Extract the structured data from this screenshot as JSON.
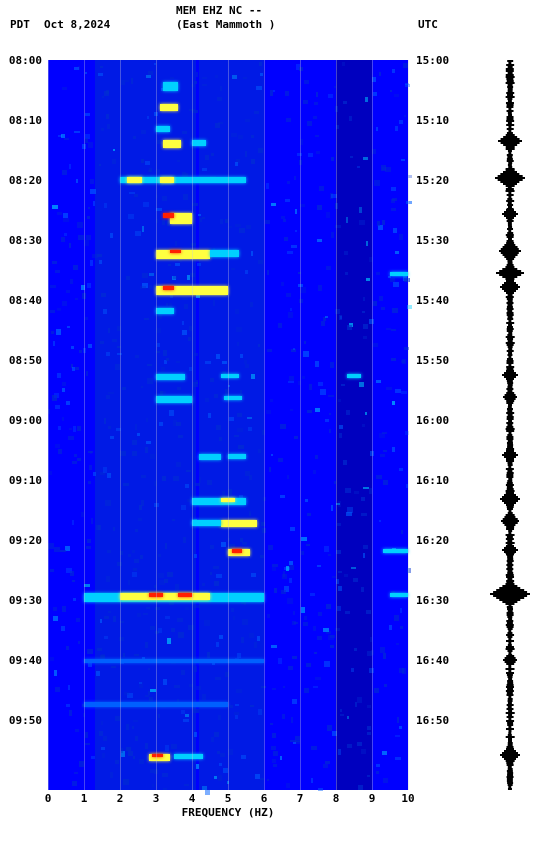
{
  "header": {
    "tz_left": "PDT",
    "date": "Oct 8,2024",
    "station_line1": "MEM EHZ NC --",
    "station_line2": "(East Mammoth )",
    "tz_right": "UTC"
  },
  "axes": {
    "xlabel": "FREQUENCY (HZ)",
    "xmin": 0,
    "xmax": 10,
    "xticks": [
      0,
      1,
      2,
      3,
      4,
      5,
      6,
      7,
      8,
      9,
      10
    ],
    "left_ticks": [
      "08:00",
      "08:10",
      "08:20",
      "08:30",
      "08:40",
      "08:50",
      "09:00",
      "09:10",
      "09:20",
      "09:30",
      "09:40",
      "09:50"
    ],
    "right_ticks": [
      "15:00",
      "15:10",
      "15:20",
      "15:30",
      "15:40",
      "15:50",
      "16:00",
      "16:10",
      "16:20",
      "16:30",
      "16:40",
      "16:50"
    ],
    "left_positions_pct": [
      0,
      8.2,
      16.4,
      24.7,
      32.9,
      41.1,
      49.3,
      57.5,
      65.8,
      74.0,
      82.2,
      90.4
    ],
    "plot_bg": "#0000ff"
  },
  "palette": {
    "low": "#00008b",
    "mid1": "#0030d0",
    "mid2": "#0060ff",
    "cyan": "#00d0ff",
    "yellow": "#ffff40",
    "red": "#ff2000"
  },
  "hotspots": [
    {
      "t": 3,
      "f": 3.2,
      "w": 0.4,
      "h": 1.2,
      "c": "cyan"
    },
    {
      "t": 6,
      "f": 3.1,
      "w": 0.5,
      "h": 1.0,
      "c": "yellow"
    },
    {
      "t": 9,
      "f": 3.0,
      "w": 0.4,
      "h": 0.8,
      "c": "cyan"
    },
    {
      "t": 11,
      "f": 3.2,
      "w": 0.5,
      "h": 1.0,
      "c": "yellow"
    },
    {
      "t": 11,
      "f": 4.0,
      "w": 0.4,
      "h": 0.8,
      "c": "cyan"
    },
    {
      "t": 16,
      "f": 2.0,
      "w": 3.5,
      "h": 0.8,
      "c": "cyan"
    },
    {
      "t": 16,
      "f": 3.1,
      "w": 0.4,
      "h": 0.8,
      "c": "yellow"
    },
    {
      "t": 16,
      "f": 2.2,
      "w": 0.4,
      "h": 0.8,
      "c": "yellow"
    },
    {
      "t": 21,
      "f": 3.4,
      "w": 0.6,
      "h": 1.5,
      "c": "yellow"
    },
    {
      "t": 21,
      "f": 3.2,
      "w": 0.3,
      "h": 0.6,
      "c": "red"
    },
    {
      "t": 26,
      "f": 3.0,
      "w": 1.5,
      "h": 1.2,
      "c": "yellow"
    },
    {
      "t": 26,
      "f": 3.4,
      "w": 0.3,
      "h": 0.5,
      "c": "red"
    },
    {
      "t": 26,
      "f": 4.5,
      "w": 0.8,
      "h": 1.0,
      "c": "cyan"
    },
    {
      "t": 29,
      "f": 9.5,
      "w": 0.5,
      "h": 0.6,
      "c": "cyan"
    },
    {
      "t": 31,
      "f": 3.0,
      "w": 2.0,
      "h": 1.2,
      "c": "yellow"
    },
    {
      "t": 31,
      "f": 3.2,
      "w": 0.3,
      "h": 0.5,
      "c": "red"
    },
    {
      "t": 34,
      "f": 3.0,
      "w": 0.5,
      "h": 0.8,
      "c": "cyan"
    },
    {
      "t": 43,
      "f": 3.0,
      "w": 0.8,
      "h": 0.8,
      "c": "cyan"
    },
    {
      "t": 43,
      "f": 4.8,
      "w": 0.5,
      "h": 0.6,
      "c": "cyan"
    },
    {
      "t": 43,
      "f": 8.3,
      "w": 0.4,
      "h": 0.6,
      "c": "cyan"
    },
    {
      "t": 46,
      "f": 3.0,
      "w": 1.0,
      "h": 1.0,
      "c": "cyan"
    },
    {
      "t": 46,
      "f": 4.9,
      "w": 0.5,
      "h": 0.6,
      "c": "cyan"
    },
    {
      "t": 54,
      "f": 4.2,
      "w": 0.6,
      "h": 0.8,
      "c": "cyan"
    },
    {
      "t": 54,
      "f": 5.0,
      "w": 0.5,
      "h": 0.6,
      "c": "cyan"
    },
    {
      "t": 60,
      "f": 4.0,
      "w": 1.5,
      "h": 1.0,
      "c": "cyan"
    },
    {
      "t": 60,
      "f": 4.8,
      "w": 0.4,
      "h": 0.6,
      "c": "yellow"
    },
    {
      "t": 63,
      "f": 4.8,
      "w": 1.0,
      "h": 1.0,
      "c": "yellow"
    },
    {
      "t": 63,
      "f": 4.0,
      "w": 0.8,
      "h": 0.8,
      "c": "cyan"
    },
    {
      "t": 67,
      "f": 5.0,
      "w": 0.6,
      "h": 1.0,
      "c": "yellow"
    },
    {
      "t": 67,
      "f": 5.1,
      "w": 0.3,
      "h": 0.5,
      "c": "red"
    },
    {
      "t": 67,
      "f": 9.3,
      "w": 0.7,
      "h": 0.6,
      "c": "cyan"
    },
    {
      "t": 73,
      "f": 1.0,
      "w": 5.0,
      "h": 1.2,
      "c": "cyan"
    },
    {
      "t": 73,
      "f": 2.0,
      "w": 2.5,
      "h": 1.0,
      "c": "yellow"
    },
    {
      "t": 73,
      "f": 2.8,
      "w": 0.4,
      "h": 0.6,
      "c": "red"
    },
    {
      "t": 73,
      "f": 3.6,
      "w": 0.4,
      "h": 0.6,
      "c": "red"
    },
    {
      "t": 73,
      "f": 9.5,
      "w": 0.5,
      "h": 0.6,
      "c": "cyan"
    },
    {
      "t": 82,
      "f": 1.0,
      "w": 5.0,
      "h": 0.6,
      "c": "mid2"
    },
    {
      "t": 88,
      "f": 1.0,
      "w": 4.0,
      "h": 0.6,
      "c": "mid2"
    },
    {
      "t": 95,
      "f": 2.8,
      "w": 0.6,
      "h": 1.0,
      "c": "yellow"
    },
    {
      "t": 95,
      "f": 2.9,
      "w": 0.3,
      "h": 0.5,
      "c": "red"
    },
    {
      "t": 95,
      "f": 3.5,
      "w": 0.8,
      "h": 0.8,
      "c": "cyan"
    }
  ],
  "noise_bands": [
    {
      "f": 1.3,
      "w": 2.8,
      "c": "mid1"
    },
    {
      "f": 4.2,
      "w": 1.8,
      "c": "mid1"
    },
    {
      "f": 8.0,
      "w": 1.0,
      "c": "low"
    }
  ],
  "waveform": {
    "base_width": 6,
    "bursts": [
      {
        "t": 11,
        "amp": 18,
        "h": 3
      },
      {
        "t": 16,
        "amp": 24,
        "h": 4
      },
      {
        "t": 21,
        "amp": 10,
        "h": 2
      },
      {
        "t": 26,
        "amp": 16,
        "h": 4
      },
      {
        "t": 29,
        "amp": 22,
        "h": 3
      },
      {
        "t": 31,
        "amp": 14,
        "h": 3
      },
      {
        "t": 43,
        "amp": 10,
        "h": 2
      },
      {
        "t": 46,
        "amp": 8,
        "h": 2
      },
      {
        "t": 54,
        "amp": 10,
        "h": 2
      },
      {
        "t": 60,
        "amp": 14,
        "h": 3
      },
      {
        "t": 63,
        "amp": 12,
        "h": 3
      },
      {
        "t": 67,
        "amp": 10,
        "h": 2
      },
      {
        "t": 73,
        "amp": 34,
        "h": 5
      },
      {
        "t": 82,
        "amp": 8,
        "h": 2
      },
      {
        "t": 95,
        "amp": 14,
        "h": 3
      }
    ]
  }
}
